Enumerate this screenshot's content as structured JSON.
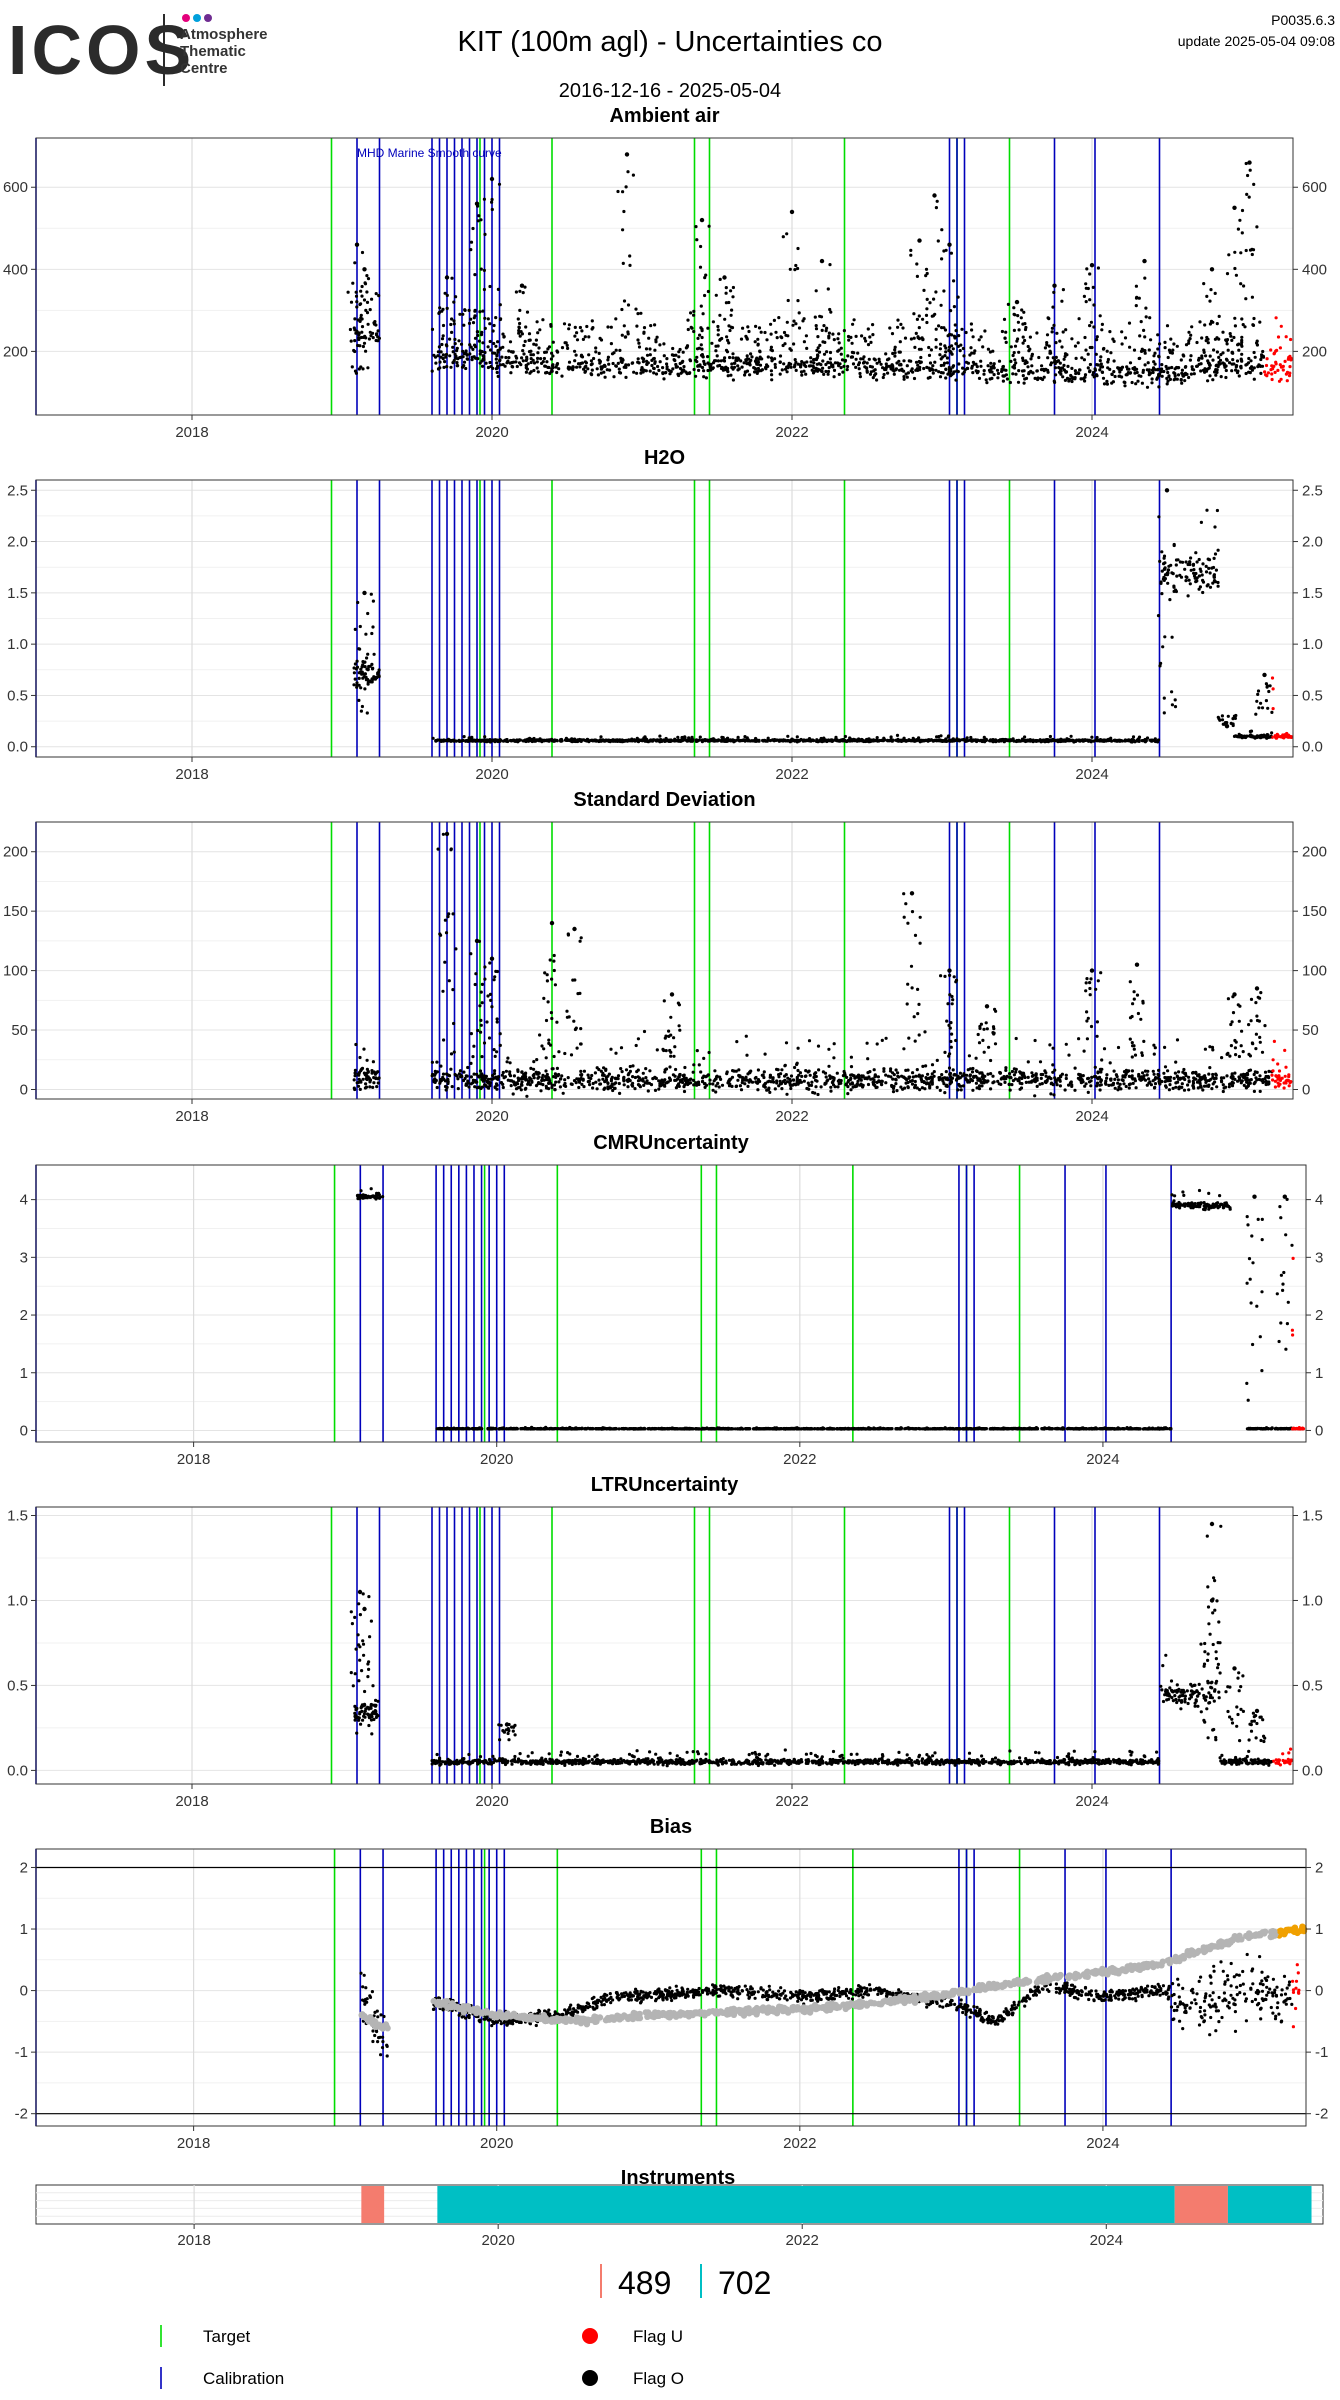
{
  "header": {
    "logo": "ICOS",
    "logo_sub": [
      "Atmosphere",
      "Thematic",
      "Centre"
    ],
    "title": "KIT  (100m agl) - Uncertainties co",
    "date_range": "2016-12-16 - 2025-05-04",
    "version": "P0035.6.3",
    "update": "update  2025-05-04 09:08"
  },
  "colors": {
    "target": "#00dd00",
    "calibration": "#0000bb",
    "flag_u": "#ff0000",
    "flag_o": "#000000",
    "bias_gray": "#b4b4b4",
    "bias_orange": "#f0a000",
    "instrument_a": "#f47c6e",
    "instrument_b": "#00bfc4",
    "logo_dots": [
      "#e4007c",
      "#00a0dc",
      "#6f2c91"
    ]
  },
  "chart_data": [
    {
      "type": "scatter",
      "title": "Ambient air",
      "x_range": [
        "2016-12-16",
        "2025-05-04"
      ],
      "x_ticks": [
        "2018",
        "2020",
        "2022",
        "2024"
      ],
      "ylim": [
        45,
        720
      ],
      "y_ticks": [
        200,
        400,
        600
      ],
      "annotation": "MHD Marine Smooth curve",
      "baseline": [
        [
          2019.08,
          240
        ],
        [
          2019.3,
          230
        ],
        [
          2019.6,
          180
        ],
        [
          2020.0,
          175
        ],
        [
          2020.5,
          160
        ],
        [
          2021.0,
          160
        ],
        [
          2021.5,
          158
        ],
        [
          2022.0,
          160
        ],
        [
          2022.5,
          160
        ],
        [
          2023.0,
          155
        ],
        [
          2023.5,
          145
        ],
        [
          2024.0,
          145
        ],
        [
          2024.5,
          140
        ],
        [
          2025.0,
          160
        ],
        [
          2025.33,
          150
        ]
      ],
      "spikes": [
        [
          2019.1,
          460
        ],
        [
          2019.15,
          400
        ],
        [
          2019.7,
          380
        ],
        [
          2019.9,
          560
        ],
        [
          2020.0,
          620
        ],
        [
          2020.2,
          360
        ],
        [
          2020.9,
          680
        ],
        [
          2021.4,
          520
        ],
        [
          2021.55,
          380
        ],
        [
          2022.0,
          540
        ],
        [
          2022.2,
          420
        ],
        [
          2022.85,
          470
        ],
        [
          2022.95,
          580
        ],
        [
          2023.05,
          460
        ],
        [
          2023.5,
          320
        ],
        [
          2023.75,
          360
        ],
        [
          2024.0,
          410
        ],
        [
          2024.35,
          420
        ],
        [
          2024.8,
          400
        ],
        [
          2024.95,
          550
        ],
        [
          2025.05,
          660
        ]
      ],
      "gap_periods": [
        [
          "2019.25",
          "2019.6"
        ]
      ],
      "flag_u_range": [
        "2025.15",
        "2025.33"
      ]
    },
    {
      "type": "scatter",
      "title": "H2O",
      "x_range": [
        "2016-12-16",
        "2025-05-04"
      ],
      "x_ticks": [
        "2018",
        "2020",
        "2022",
        "2024"
      ],
      "ylim": [
        -0.1,
        2.6
      ],
      "y_ticks": [
        0.0,
        0.5,
        1.0,
        1.5,
        2.0,
        2.5
      ],
      "segments": [
        [
          2019.08,
          2019.25,
          0.7,
          0.25
        ],
        [
          2019.6,
          2024.45,
          0.06,
          0.02
        ],
        [
          2024.45,
          2024.85,
          1.7,
          0.35
        ],
        [
          2024.95,
          2025.33,
          0.1,
          0.03
        ]
      ],
      "spikes": [
        [
          2019.15,
          1.5
        ],
        [
          2024.5,
          2.5
        ],
        [
          2024.9,
          0.2
        ],
        [
          2025.15,
          0.7
        ]
      ],
      "flag_u_range": [
        "2025.2",
        "2025.33"
      ]
    },
    {
      "type": "scatter",
      "title": "Standard Deviation",
      "x_range": [
        "2016-12-16",
        "2025-05-04"
      ],
      "x_ticks": [
        "2018",
        "2020",
        "2022",
        "2024"
      ],
      "ylim": [
        -8,
        225
      ],
      "y_ticks": [
        0,
        50,
        100,
        150,
        200
      ],
      "segments": [
        [
          2019.08,
          2019.25,
          8,
          20
        ],
        [
          2019.6,
          2025.33,
          8,
          18
        ]
      ],
      "spikes": [
        [
          2019.7,
          215
        ],
        [
          2019.9,
          125
        ],
        [
          2020.0,
          110
        ],
        [
          2020.4,
          140
        ],
        [
          2020.55,
          135
        ],
        [
          2021.2,
          80
        ],
        [
          2022.8,
          165
        ],
        [
          2023.05,
          100
        ],
        [
          2023.3,
          70
        ],
        [
          2024.0,
          100
        ],
        [
          2024.3,
          105
        ],
        [
          2024.95,
          80
        ],
        [
          2025.1,
          85
        ]
      ],
      "flag_u_range": [
        "2025.2",
        "2025.33"
      ]
    },
    {
      "type": "scatter",
      "title": "CMRUncertainty",
      "x_range": [
        "2016-12-16",
        "2025-05-04"
      ],
      "x_ticks": [
        "2018",
        "2020",
        "2022",
        "2024"
      ],
      "ylim": [
        -0.2,
        4.6
      ],
      "y_ticks": [
        0,
        1,
        2,
        3,
        4
      ],
      "segments": [
        [
          2019.08,
          2019.25,
          4.05,
          0.08
        ],
        [
          2019.6,
          2024.45,
          0.03,
          0.01
        ],
        [
          2024.45,
          2024.85,
          3.9,
          0.12
        ],
        [
          2024.95,
          2025.33,
          0.03,
          0.01
        ]
      ],
      "spikes": [
        [
          2025.0,
          4.05
        ],
        [
          2025.2,
          4.05
        ]
      ],
      "flag_u_range": [
        "2025.25",
        "2025.33"
      ]
    },
    {
      "type": "scatter",
      "title": "LTRUncertainty",
      "x_range": [
        "2016-12-16",
        "2025-05-04"
      ],
      "x_ticks": [
        "2018",
        "2020",
        "2022",
        "2024"
      ],
      "ylim": [
        -0.08,
        1.55
      ],
      "y_ticks": [
        0.0,
        0.5,
        1.0,
        1.5
      ],
      "segments": [
        [
          2019.08,
          2019.25,
          0.35,
          0.12
        ],
        [
          2019.6,
          2024.45,
          0.05,
          0.03
        ],
        [
          2024.45,
          2024.85,
          0.45,
          0.15
        ],
        [
          2024.85,
          2025.33,
          0.05,
          0.03
        ]
      ],
      "spikes": [
        [
          2019.12,
          1.05
        ],
        [
          2019.15,
          0.95
        ],
        [
          2020.1,
          0.27
        ],
        [
          2024.8,
          1.45
        ],
        [
          2024.8,
          1.0
        ],
        [
          2024.95,
          0.6
        ],
        [
          2025.1,
          0.35
        ]
      ],
      "flag_u_range": [
        "2025.2",
        "2025.33"
      ]
    },
    {
      "type": "scatter",
      "title": "Bias",
      "x_range": [
        "2016-12-16",
        "2025-05-04"
      ],
      "x_ticks": [
        "2018",
        "2020",
        "2022",
        "2024"
      ],
      "ylim": [
        -2.2,
        2.3
      ],
      "y_ticks": [
        -2,
        -1,
        0,
        1,
        2
      ],
      "hlines": [
        2,
        -2
      ],
      "black_trend": [
        [
          2019.1,
          0.0
        ],
        [
          2019.25,
          -0.8
        ],
        [
          2019.6,
          -0.2
        ],
        [
          2020.0,
          -0.5
        ],
        [
          2020.4,
          -0.4
        ],
        [
          2020.8,
          -0.1
        ],
        [
          2021.5,
          0.0
        ],
        [
          2022.0,
          -0.1
        ],
        [
          2022.5,
          0.0
        ],
        [
          2023.0,
          -0.2
        ],
        [
          2023.3,
          -0.5
        ],
        [
          2023.6,
          0.1
        ],
        [
          2024.0,
          -0.1
        ],
        [
          2024.4,
          0.0
        ],
        [
          2024.6,
          -0.2
        ],
        [
          2024.9,
          0.0
        ],
        [
          2025.3,
          -0.1
        ]
      ],
      "gray_trend": [
        [
          2019.1,
          -0.4
        ],
        [
          2019.25,
          -0.6
        ],
        [
          2019.6,
          -0.2
        ],
        [
          2020.0,
          -0.4
        ],
        [
          2020.5,
          -0.5
        ],
        [
          2021.0,
          -0.4
        ],
        [
          2021.5,
          -0.35
        ],
        [
          2022.0,
          -0.3
        ],
        [
          2022.5,
          -0.2
        ],
        [
          2023.0,
          -0.05
        ],
        [
          2023.5,
          0.15
        ],
        [
          2024.0,
          0.3
        ],
        [
          2024.4,
          0.45
        ],
        [
          2024.7,
          0.7
        ],
        [
          2025.0,
          0.9
        ],
        [
          2025.33,
          1.0
        ]
      ],
      "orange_range": [
        "2025.15",
        "2025.33",
        1.0
      ],
      "flag_u_range": [
        "2025.25",
        "2025.33"
      ]
    }
  ],
  "instruments": {
    "title": "Instruments",
    "blocks": [
      [
        "2019.1",
        "2019.25",
        "a"
      ],
      [
        "2019.6",
        "2024.45",
        "b"
      ],
      [
        "2024.45",
        "2024.8",
        "a"
      ],
      [
        "2024.8",
        "2025.35",
        "b"
      ]
    ],
    "x_ticks": [
      "2018",
      "2020",
      "2022",
      "2024"
    ],
    "ids": [
      "489",
      "702"
    ]
  },
  "events": {
    "target": [
      "2018.93",
      "2019.92",
      "2020.4",
      "2021.35",
      "2021.45",
      "2022.35",
      "2023.1",
      "2023.45"
    ],
    "calibration": [
      "2016.96",
      "2019.1",
      "2019.25",
      "2019.6",
      "2019.65",
      "2019.7",
      "2019.75",
      "2019.8",
      "2019.85",
      "2019.9",
      "2019.95",
      "2020.0",
      "2020.05",
      "2023.05",
      "2023.1",
      "2023.15",
      "2023.75",
      "2024.02",
      "2024.45"
    ]
  },
  "legend": {
    "target": "Target",
    "calibration": "Calibration",
    "flag_u": "Flag U",
    "flag_o": "Flag O"
  }
}
